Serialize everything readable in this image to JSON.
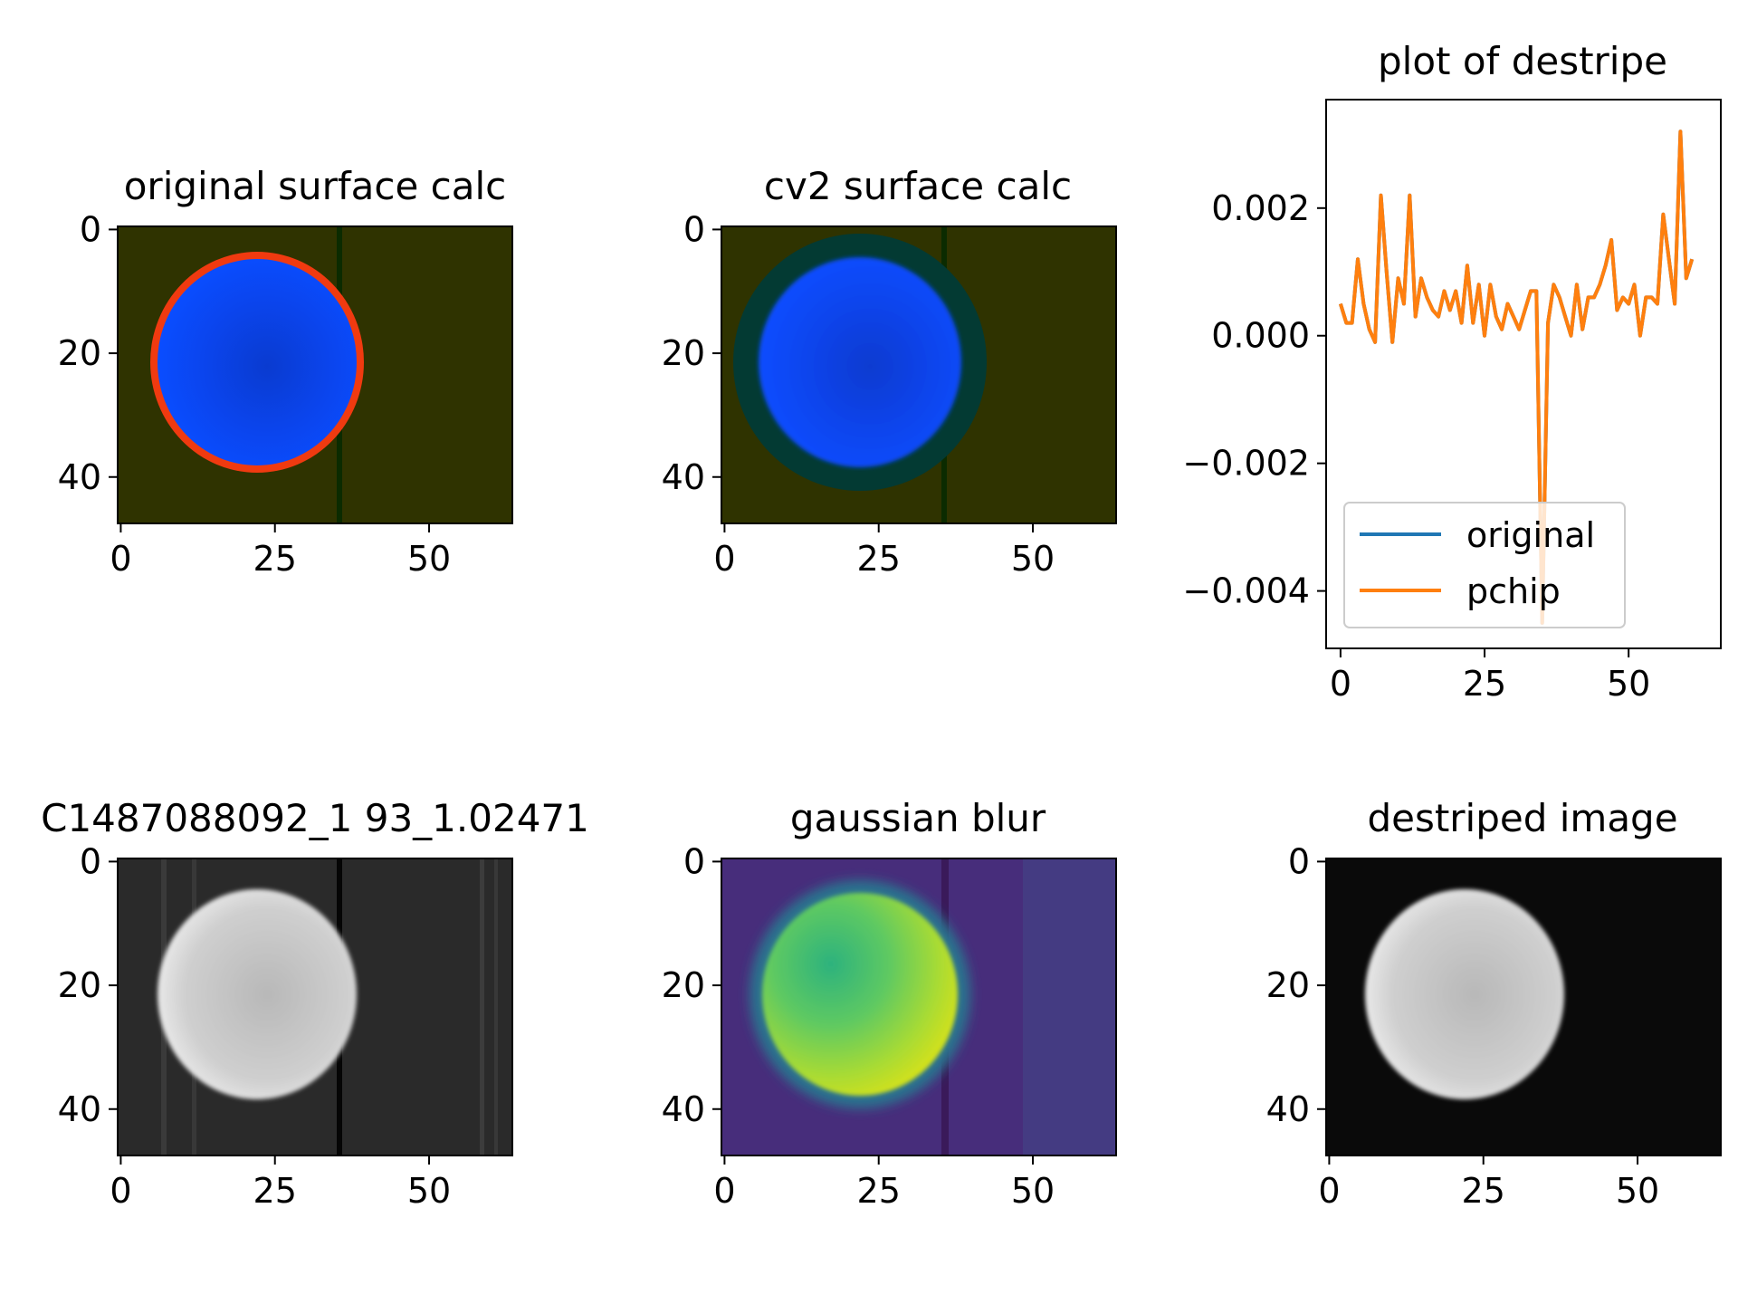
{
  "panels": [
    {
      "title": "original surface calc",
      "style": "original-surface"
    },
    {
      "title": "cv2 surface calc",
      "style": "cv2-surface"
    },
    {
      "title": "C1487088092_1 93_1.02471",
      "style": "gray-striped"
    },
    {
      "title": "gaussian blur",
      "style": "viridis-blur"
    },
    {
      "title": "destriped image",
      "style": "gray-clean"
    }
  ],
  "image_axes": {
    "xticks": [
      0,
      25,
      50
    ],
    "yticks": [
      0,
      20,
      40
    ],
    "width": 64,
    "height": 48
  },
  "chart_data": {
    "type": "line",
    "title": "plot of destripe",
    "xlabel": "",
    "ylabel": "",
    "xlim": [
      -2.5,
      66
    ],
    "ylim": [
      -0.0049,
      0.0037
    ],
    "xticks": [
      0,
      25,
      50
    ],
    "yticks": [
      {
        "value": 0.002,
        "label": "0.002"
      },
      {
        "value": 0.0,
        "label": "0.000"
      },
      {
        "value": -0.002,
        "label": "−0.002"
      },
      {
        "value": -0.004,
        "label": "−0.004"
      }
    ],
    "legend": {
      "placement": "lower-left"
    },
    "series": [
      {
        "name": "original",
        "color": "#1f77b4",
        "hidden_behind": "pchip",
        "values": [
          0.0005,
          0.0002,
          0.0002,
          0.0012,
          0.0005,
          0.0001,
          -0.0001,
          0.0022,
          0.001,
          -0.0001,
          0.0009,
          0.0005,
          0.0022,
          0.0003,
          0.0009,
          0.0006,
          0.0004,
          0.0003,
          0.0007,
          0.0004,
          0.0007,
          0.0002,
          0.0011,
          0.0002,
          0.0008,
          0.0,
          0.0008,
          0.0003,
          0.0001,
          0.0005,
          0.0003,
          0.0001,
          0.0004,
          0.0007,
          0.0007,
          -0.0045,
          0.0002,
          0.0008,
          0.0006,
          0.0003,
          0.0,
          0.0008,
          0.0001,
          0.0006,
          0.0006,
          0.0008,
          0.0011,
          0.0015,
          0.0004,
          0.0006,
          0.0005,
          0.0008,
          0.0,
          0.0006,
          0.0006,
          0.0005,
          0.0019,
          0.0012,
          0.0005,
          0.0032,
          0.0009,
          0.0012
        ]
      },
      {
        "name": "pchip",
        "color": "#ff7f0e",
        "values": [
          0.0005,
          0.0002,
          0.0002,
          0.0012,
          0.0005,
          0.0001,
          -0.0001,
          0.0022,
          0.001,
          -0.0001,
          0.0009,
          0.0005,
          0.0022,
          0.0003,
          0.0009,
          0.0006,
          0.0004,
          0.0003,
          0.0007,
          0.0004,
          0.0007,
          0.0002,
          0.0011,
          0.0002,
          0.0008,
          0.0,
          0.0008,
          0.0003,
          0.0001,
          0.0005,
          0.0003,
          0.0001,
          0.0004,
          0.0007,
          0.0007,
          -0.0045,
          0.0002,
          0.0008,
          0.0006,
          0.0003,
          0.0,
          0.0008,
          0.0001,
          0.0006,
          0.0006,
          0.0008,
          0.0011,
          0.0015,
          0.0004,
          0.0006,
          0.0005,
          0.0008,
          0.0,
          0.0006,
          0.0006,
          0.0005,
          0.0019,
          0.0012,
          0.0005,
          0.0032,
          0.0009,
          0.0012
        ]
      }
    ]
  }
}
